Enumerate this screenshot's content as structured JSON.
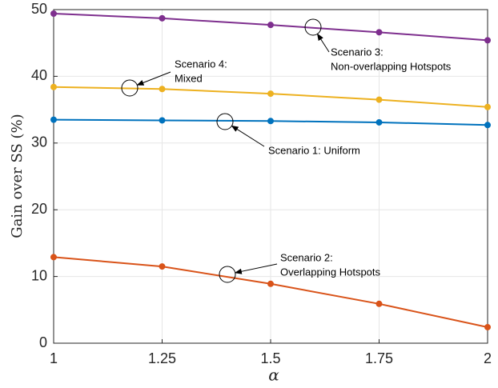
{
  "chart_data": {
    "type": "line",
    "x": [
      1,
      1.25,
      1.5,
      1.75,
      2
    ],
    "xlabel": "α",
    "ylabel": "Gain over SS (%)",
    "xlim": [
      1,
      2
    ],
    "xticks": [
      1,
      1.25,
      1.5,
      1.75,
      2
    ],
    "ylim": [
      0,
      50
    ],
    "yticks": [
      0,
      10,
      20,
      30,
      40,
      50
    ],
    "grid": true,
    "series": [
      {
        "color": "#7E2F8E",
        "values": [
          49.4,
          48.7,
          47.7,
          46.6,
          45.4
        ]
      },
      {
        "color": "#EDB120",
        "values": [
          38.4,
          38.1,
          37.4,
          36.5,
          35.4
        ]
      },
      {
        "color": "#0072BD",
        "values": [
          33.5,
          33.4,
          33.3,
          33.1,
          32.7
        ]
      },
      {
        "color": "#D95319",
        "values": [
          12.9,
          11.5,
          8.9,
          5.9,
          2.4
        ]
      }
    ],
    "annotations": [
      {
        "lines": [
          "Scenario 4:",
          "Mixed"
        ]
      },
      {
        "lines": [
          "Scenario 3:",
          "Non-overlapping Hotspots"
        ]
      },
      {
        "lines": [
          "Scenario 1: Uniform"
        ]
      },
      {
        "lines": [
          "Scenario 2:",
          "Overlapping Hotspots"
        ]
      }
    ]
  }
}
